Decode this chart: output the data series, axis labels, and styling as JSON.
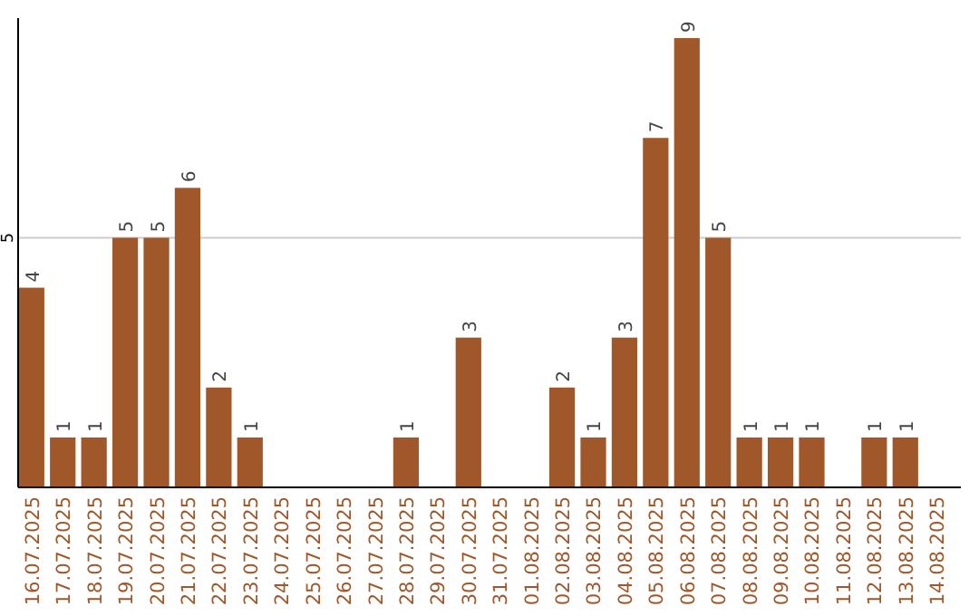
{
  "chart_data": {
    "type": "bar",
    "categories": [
      "16.07.2025",
      "17.07.2025",
      "18.07.2025",
      "19.07.2025",
      "20.07.2025",
      "21.07.2025",
      "22.07.2025",
      "23.07.2025",
      "24.07.2025",
      "25.07.2025",
      "26.07.2025",
      "27.07.2025",
      "28.07.2025",
      "29.07.2025",
      "30.07.2025",
      "31.07.2025",
      "01.08.2025",
      "02.08.2025",
      "03.08.2025",
      "04.08.2025",
      "05.08.2025",
      "06.08.2025",
      "07.08.2025",
      "08.08.2025",
      "09.08.2025",
      "10.08.2025",
      "11.08.2025",
      "12.08.2025",
      "13.08.2025",
      "14.08.2025"
    ],
    "values": [
      4,
      1,
      1,
      5,
      5,
      6,
      2,
      1,
      0,
      0,
      0,
      0,
      1,
      0,
      3,
      0,
      0,
      2,
      1,
      3,
      7,
      9,
      5,
      1,
      1,
      1,
      0,
      1,
      1,
      0
    ],
    "value_labels": [
      "4",
      "1",
      "1",
      "5",
      "5",
      "6",
      "2",
      "1",
      null,
      null,
      null,
      null,
      "1",
      null,
      "3",
      null,
      null,
      "2",
      "1",
      "3",
      "7",
      "9",
      "5",
      "1",
      "1",
      "1",
      null,
      "1",
      "1",
      null
    ],
    "color": "#a0582a",
    "ylim": [
      0,
      9.4
    ],
    "yticks": [
      5
    ],
    "grid": "y"
  }
}
